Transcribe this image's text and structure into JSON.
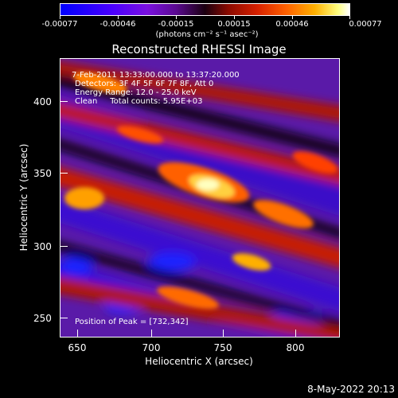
{
  "colorbar": {
    "labels": [
      "-0.00077",
      "-0.00046",
      "-0.00015",
      "0.00015",
      "0.00046",
      "0.00077"
    ],
    "units": "(photons cm⁻² s⁻¹ asec⁻²)"
  },
  "title": "Reconstructed RHESSI Image",
  "annotation": {
    "time": "7-Feb-2011 13:33:00.000 to 13:37:20.000",
    "detectors": "Detectors: 3F 4F 5F 6F 7F 8F, Att 0",
    "energy": "Energy Range: 12.0 - 25.0 keV",
    "clean": "Clean     Total counts: 5.95E+03",
    "peak": "Position of Peak = [732,342]"
  },
  "axes": {
    "x_ticks": [
      "650",
      "700",
      "750",
      "800"
    ],
    "y_ticks": [
      "250",
      "300",
      "350",
      "400"
    ],
    "xlabel": "Heliocentric X (arcsec)",
    "ylabel": "Heliocentric Y (arcsec)"
  },
  "timestamp": "8-May-2022 20:13"
}
